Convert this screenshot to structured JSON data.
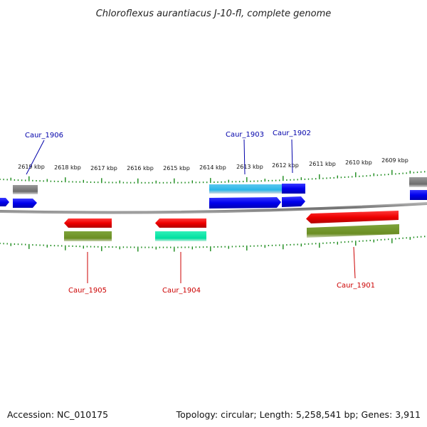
{
  "title": "Chloroflexus aurantiacus J-10-fl, complete genome",
  "footer": {
    "accession": "Accession: NC_010175",
    "info": "Topology: circular; Length: 5,258,541 bp; Genes: 3,911"
  },
  "colors": {
    "forward_gene": "#0000ee",
    "reverse_gene": "#ee0000",
    "forward_label": "#0000aa",
    "reverse_label": "#cc0000",
    "cds": "#6b8e23",
    "rna_cyan": "#29b6e8",
    "rna_green": "#00e0a0",
    "grey_feature": "#8a8a8a",
    "backbone": "#808080",
    "ticks": "#1a8a1a"
  },
  "scale": {
    "unit": "kbp",
    "labels": [
      "2619 kbp",
      "2618 kbp",
      "2617 kbp",
      "2616 kbp",
      "2615 kbp",
      "2614 kbp",
      "2613 kbp",
      "2612 kbp",
      "2611 kbp",
      "2610 kbp",
      "2609 kbp"
    ]
  },
  "genes": [
    {
      "name": "Caur_1906",
      "strand": "forward"
    },
    {
      "name": "Caur_1905",
      "strand": "reverse"
    },
    {
      "name": "Caur_1904",
      "strand": "reverse"
    },
    {
      "name": "Caur_1903",
      "strand": "forward"
    },
    {
      "name": "Caur_1902",
      "strand": "forward"
    },
    {
      "name": "Caur_1901",
      "strand": "reverse"
    }
  ]
}
